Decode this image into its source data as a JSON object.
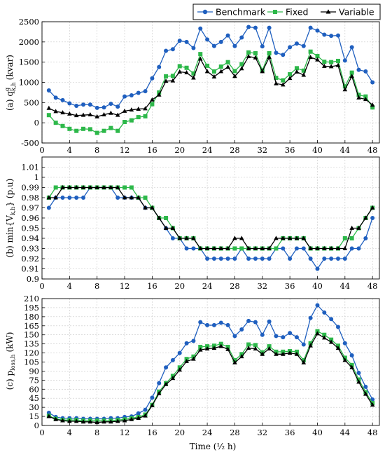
{
  "legend": {
    "items": [
      {
        "name": "Benchmark",
        "color": "#1f5fbf",
        "marker": "circle"
      },
      {
        "name": "Fixed",
        "color": "#2db84a",
        "marker": "square"
      },
      {
        "name": "Variable",
        "color": "#000000",
        "marker": "triangle"
      }
    ]
  },
  "xlabel": "Time (½ h)",
  "chart_data": [
    {
      "type": "line",
      "ylabel": "(a) q",
      "ylabel_sup": "g",
      "ylabel_sub": "k,h",
      "ylabel_unit": "(kvar)",
      "x": [
        1,
        2,
        3,
        4,
        5,
        6,
        7,
        8,
        9,
        10,
        11,
        12,
        13,
        14,
        15,
        16,
        17,
        18,
        19,
        20,
        21,
        22,
        23,
        24,
        25,
        26,
        27,
        28,
        29,
        30,
        31,
        32,
        33,
        34,
        35,
        36,
        37,
        38,
        39,
        40,
        41,
        42,
        43,
        44,
        45,
        46,
        47,
        48
      ],
      "xlim": [
        0,
        49
      ],
      "ylim": [
        -500,
        2500
      ],
      "xticks": [
        0,
        4,
        8,
        12,
        16,
        20,
        24,
        28,
        32,
        36,
        40,
        44,
        48
      ],
      "yticks": [
        -500,
        0,
        500,
        1000,
        1500,
        2000,
        2500
      ],
      "grid": true,
      "series": [
        {
          "name": "Benchmark",
          "values": [
            800,
            620,
            560,
            480,
            420,
            450,
            450,
            370,
            380,
            470,
            400,
            650,
            680,
            740,
            780,
            1100,
            1380,
            1780,
            1820,
            2030,
            2000,
            1850,
            2330,
            2060,
            1900,
            2000,
            2160,
            1900,
            2110,
            2370,
            2350,
            1890,
            2350,
            1730,
            1680,
            1870,
            1960,
            1900,
            2350,
            2280,
            2180,
            2150,
            2160,
            1540,
            1870,
            1310,
            1270,
            1000
          ]
        },
        {
          "name": "Fixed",
          "values": [
            190,
            0,
            -80,
            -150,
            -200,
            -150,
            -160,
            -250,
            -200,
            -130,
            -200,
            20,
            60,
            140,
            160,
            460,
            750,
            1150,
            1160,
            1400,
            1360,
            1220,
            1700,
            1410,
            1270,
            1390,
            1500,
            1280,
            1450,
            1740,
            1720,
            1300,
            1720,
            1110,
            1050,
            1200,
            1350,
            1290,
            1760,
            1650,
            1510,
            1500,
            1530,
            900,
            1240,
            690,
            650,
            380
          ]
        },
        {
          "name": "Variable",
          "values": [
            360,
            280,
            250,
            220,
            180,
            190,
            200,
            150,
            200,
            240,
            190,
            290,
            320,
            340,
            350,
            570,
            690,
            1030,
            1040,
            1260,
            1240,
            1110,
            1580,
            1270,
            1140,
            1270,
            1380,
            1150,
            1340,
            1640,
            1610,
            1270,
            1620,
            970,
            940,
            1100,
            1260,
            1180,
            1620,
            1560,
            1400,
            1390,
            1420,
            820,
            1150,
            620,
            580,
            440
          ]
        }
      ]
    },
    {
      "type": "line",
      "ylabel": "(b) min{V",
      "ylabel_sub": "k,h",
      "ylabel_unit": "} (p.u)",
      "x": [
        1,
        2,
        3,
        4,
        5,
        6,
        7,
        8,
        9,
        10,
        11,
        12,
        13,
        14,
        15,
        16,
        17,
        18,
        19,
        20,
        21,
        22,
        23,
        24,
        25,
        26,
        27,
        28,
        29,
        30,
        31,
        32,
        33,
        34,
        35,
        36,
        37,
        38,
        39,
        40,
        41,
        42,
        43,
        44,
        45,
        46,
        47,
        48
      ],
      "xlim": [
        0,
        49
      ],
      "ylim": [
        0.9,
        1.02
      ],
      "xticks": [
        0,
        4,
        8,
        12,
        16,
        20,
        24,
        28,
        32,
        36,
        40,
        44,
        48
      ],
      "yticks": [
        0.9,
        0.91,
        0.92,
        0.93,
        0.94,
        0.95,
        0.96,
        0.97,
        0.98,
        0.99,
        1,
        1.01
      ],
      "ytick_labels": [
        "0.9",
        "0.91",
        "0.92",
        "0.93",
        "0.94",
        "0.95",
        "0.96",
        "0.97",
        "0.98",
        "0.99",
        "1",
        "1.01"
      ],
      "grid": true,
      "series": [
        {
          "name": "Benchmark",
          "values": [
            0.97,
            0.98,
            0.98,
            0.98,
            0.98,
            0.98,
            0.99,
            0.99,
            0.99,
            0.99,
            0.98,
            0.98,
            0.98,
            0.98,
            0.97,
            0.97,
            0.96,
            0.95,
            0.94,
            0.94,
            0.93,
            0.93,
            0.93,
            0.92,
            0.92,
            0.92,
            0.92,
            0.92,
            0.93,
            0.92,
            0.92,
            0.92,
            0.92,
            0.93,
            0.93,
            0.92,
            0.93,
            0.93,
            0.92,
            0.91,
            0.92,
            0.92,
            0.92,
            0.92,
            0.93,
            0.93,
            0.94,
            0.96
          ]
        },
        {
          "name": "Fixed",
          "values": [
            0.98,
            0.99,
            0.99,
            0.99,
            0.99,
            0.99,
            0.99,
            0.99,
            0.99,
            0.99,
            0.99,
            0.99,
            0.99,
            0.98,
            0.98,
            0.97,
            0.96,
            0.96,
            0.95,
            0.94,
            0.94,
            0.94,
            0.93,
            0.93,
            0.93,
            0.93,
            0.93,
            0.93,
            0.93,
            0.93,
            0.93,
            0.93,
            0.93,
            0.93,
            0.94,
            0.94,
            0.94,
            0.94,
            0.93,
            0.93,
            0.93,
            0.93,
            0.93,
            0.94,
            0.94,
            0.95,
            0.96,
            0.97
          ]
        },
        {
          "name": "Variable",
          "values": [
            0.98,
            0.98,
            0.99,
            0.99,
            0.99,
            0.99,
            0.99,
            0.99,
            0.99,
            0.99,
            0.99,
            0.98,
            0.98,
            0.98,
            0.97,
            0.97,
            0.96,
            0.95,
            0.95,
            0.94,
            0.94,
            0.94,
            0.93,
            0.93,
            0.93,
            0.93,
            0.93,
            0.94,
            0.94,
            0.93,
            0.93,
            0.93,
            0.93,
            0.94,
            0.94,
            0.94,
            0.94,
            0.94,
            0.93,
            0.93,
            0.93,
            0.93,
            0.93,
            0.93,
            0.95,
            0.95,
            0.96,
            0.97
          ]
        }
      ]
    },
    {
      "type": "line",
      "ylabel": "(c) p",
      "ylabel_sub": "loss,h",
      "ylabel_unit": "(kW)",
      "x": [
        1,
        2,
        3,
        4,
        5,
        6,
        7,
        8,
        9,
        10,
        11,
        12,
        13,
        14,
        15,
        16,
        17,
        18,
        19,
        20,
        21,
        22,
        23,
        24,
        25,
        26,
        27,
        28,
        29,
        30,
        31,
        32,
        33,
        34,
        35,
        36,
        37,
        38,
        39,
        40,
        41,
        42,
        43,
        44,
        45,
        46,
        47,
        48
      ],
      "xlim": [
        0,
        49
      ],
      "ylim": [
        0,
        210
      ],
      "xticks": [
        0,
        4,
        8,
        12,
        16,
        20,
        24,
        28,
        32,
        36,
        40,
        44,
        48
      ],
      "yticks": [
        0,
        15,
        30,
        45,
        60,
        75,
        90,
        105,
        120,
        135,
        150,
        165,
        180,
        195,
        210
      ],
      "grid": true,
      "series": [
        {
          "name": "Benchmark",
          "values": [
            21,
            14,
            12,
            12,
            12,
            11,
            11,
            11,
            11,
            12,
            12,
            14,
            15,
            20,
            26,
            46,
            70,
            96,
            108,
            120,
            136,
            140,
            171,
            166,
            166,
            170,
            166,
            148,
            159,
            173,
            171,
            150,
            172,
            148,
            146,
            153,
            146,
            134,
            178,
            199,
            187,
            176,
            163,
            136,
            116,
            87,
            64,
            43
          ]
        },
        {
          "name": "Fixed",
          "values": [
            16,
            11,
            9,
            9,
            9,
            8,
            8,
            8,
            8,
            8,
            9,
            10,
            12,
            14,
            18,
            34,
            56,
            70,
            82,
            96,
            110,
            114,
            130,
            131,
            132,
            135,
            130,
            108,
            118,
            134,
            133,
            121,
            131,
            122,
            122,
            123,
            122,
            108,
            136,
            156,
            150,
            142,
            132,
            112,
            100,
            76,
            55,
            37
          ]
        },
        {
          "name": "Variable",
          "values": [
            15,
            10,
            8,
            7,
            7,
            6,
            6,
            5,
            6,
            6,
            7,
            8,
            10,
            12,
            16,
            33,
            53,
            68,
            78,
            92,
            106,
            110,
            125,
            127,
            128,
            131,
            126,
            104,
            114,
            128,
            127,
            118,
            127,
            118,
            118,
            120,
            118,
            104,
            132,
            152,
            145,
            138,
            128,
            108,
            96,
            72,
            52,
            34
          ]
        }
      ]
    }
  ]
}
